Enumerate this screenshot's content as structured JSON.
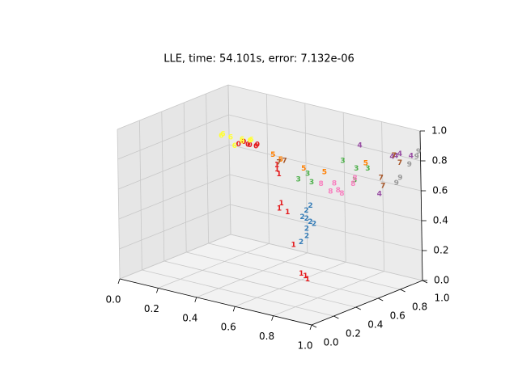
{
  "chart_data": {
    "type": "scatter3d",
    "title": "LLE, time: 54.101s, error: 7.132e-06",
    "xlim": [
      0,
      1
    ],
    "ylim": [
      0,
      1
    ],
    "zlim": [
      0,
      1
    ],
    "xticks": [
      {
        "value": 0,
        "label": "0.0"
      },
      0.2,
      0.4,
      0.6,
      0.8,
      {
        "value": 1,
        "label": "1.0"
      }
    ],
    "yticks": [
      {
        "value": 0,
        "label": "0.0"
      },
      0.2,
      0.4,
      0.6,
      0.8,
      {
        "value": 1,
        "label": "1.0"
      }
    ],
    "zticks": [
      {
        "value": 0,
        "label": "0.0"
      },
      0.2,
      0.4,
      0.6,
      0.8,
      {
        "value": 1,
        "label": "1.0"
      }
    ],
    "grid": true,
    "series": [
      {
        "name": "0",
        "color": "#e41a1c",
        "x": [
          0.37,
          0.39,
          0.4,
          0.42,
          0.38,
          0.41
        ],
        "y": [
          0.45,
          0.5,
          0.5,
          0.52,
          0.48,
          0.55
        ],
        "z": [
          0.88,
          0.87,
          0.87,
          0.86,
          0.89,
          0.86
        ]
      },
      {
        "name": "1",
        "color": "#e41a1c",
        "x": [
          0.54,
          0.54,
          0.55,
          0.56,
          0.56,
          0.58,
          0.62,
          0.68,
          0.67,
          0.69
        ],
        "y": [
          0.5,
          0.5,
          0.5,
          0.5,
          0.48,
          0.52,
          0.5,
          0.5,
          0.48,
          0.5
        ],
        "z": [
          0.78,
          0.75,
          0.72,
          0.53,
          0.5,
          0.47,
          0.27,
          0.08,
          0.1,
          0.06
        ]
      },
      {
        "name": "2",
        "color": "#377eb8",
        "x": [
          0.69,
          0.7,
          0.68,
          0.71,
          0.69,
          0.7,
          0.69,
          0.66,
          0.72
        ],
        "y": [
          0.5,
          0.52,
          0.48,
          0.5,
          0.5,
          0.55,
          0.5,
          0.5,
          0.45
        ],
        "z": [
          0.52,
          0.55,
          0.48,
          0.45,
          0.4,
          0.42,
          0.35,
          0.3,
          0.49
        ]
      },
      {
        "name": "3",
        "color": "#4daf4a",
        "x": [
          0.7,
          0.68,
          0.71,
          0.78,
          0.84,
          0.77,
          0.72
        ],
        "y": [
          0.5,
          0.45,
          0.8,
          0.8,
          0.8,
          0.8,
          0.5
        ],
        "z": [
          0.77,
          0.74,
          0.77,
          0.74,
          0.76,
          0.66,
          0.72
        ]
      },
      {
        "name": "4",
        "color": "#984ea3",
        "x": [
          0.8,
          0.93,
          0.91,
          0.84,
          0.98,
          0.95
        ],
        "y": [
          0.8,
          0.9,
          0.9,
          0.9,
          0.95,
          0.9
        ],
        "z": [
          0.9,
          0.84,
          0.83,
          0.56,
          0.84,
          0.86
        ]
      },
      {
        "name": "5",
        "color": "#ff7f00",
        "x": [
          0.52,
          0.68,
          0.83,
          0.73,
          0.56
        ],
        "y": [
          0.5,
          0.5,
          0.8,
          0.6,
          0.5
        ],
        "z": [
          0.84,
          0.8,
          0.79,
          0.76,
          0.82
        ]
      },
      {
        "name": "6",
        "color": "#ffff33",
        "x": [
          0.3,
          0.28,
          0.33,
          0.36,
          0.35,
          0.26,
          0.4,
          0.32
        ],
        "y": [
          0.5,
          0.45,
          0.55,
          0.5,
          0.6,
          0.5,
          0.5,
          0.5
        ],
        "z": [
          0.89,
          0.91,
          0.87,
          0.88,
          0.86,
          0.9,
          0.9,
          0.84
        ]
      },
      {
        "name": "7",
        "color": "#a65628",
        "x": [
          0.58,
          0.85,
          0.86,
          0.92,
          0.95,
          0.55
        ],
        "y": [
          0.5,
          0.9,
          0.9,
          0.9,
          0.9,
          0.5
        ],
        "z": [
          0.82,
          0.67,
          0.62,
          0.84,
          0.8,
          0.8
        ]
      },
      {
        "name": "8",
        "color": "#f781bf",
        "x": [
          0.78,
          0.8,
          0.83,
          0.76,
          0.82,
          0.74,
          0.79
        ],
        "y": [
          0.6,
          0.6,
          0.7,
          0.6,
          0.7,
          0.55,
          0.65
        ],
        "z": [
          0.7,
          0.66,
          0.72,
          0.64,
          0.68,
          0.7,
          0.62
        ]
      },
      {
        "name": "9",
        "color": "#999999",
        "x": [
          0.95,
          0.93,
          0.98,
          0.99,
          0.97
        ],
        "y": [
          0.9,
          0.9,
          1.0,
          1.0,
          0.95
        ],
        "z": [
          0.7,
          0.66,
          0.82,
          0.86,
          0.78
        ]
      }
    ]
  }
}
